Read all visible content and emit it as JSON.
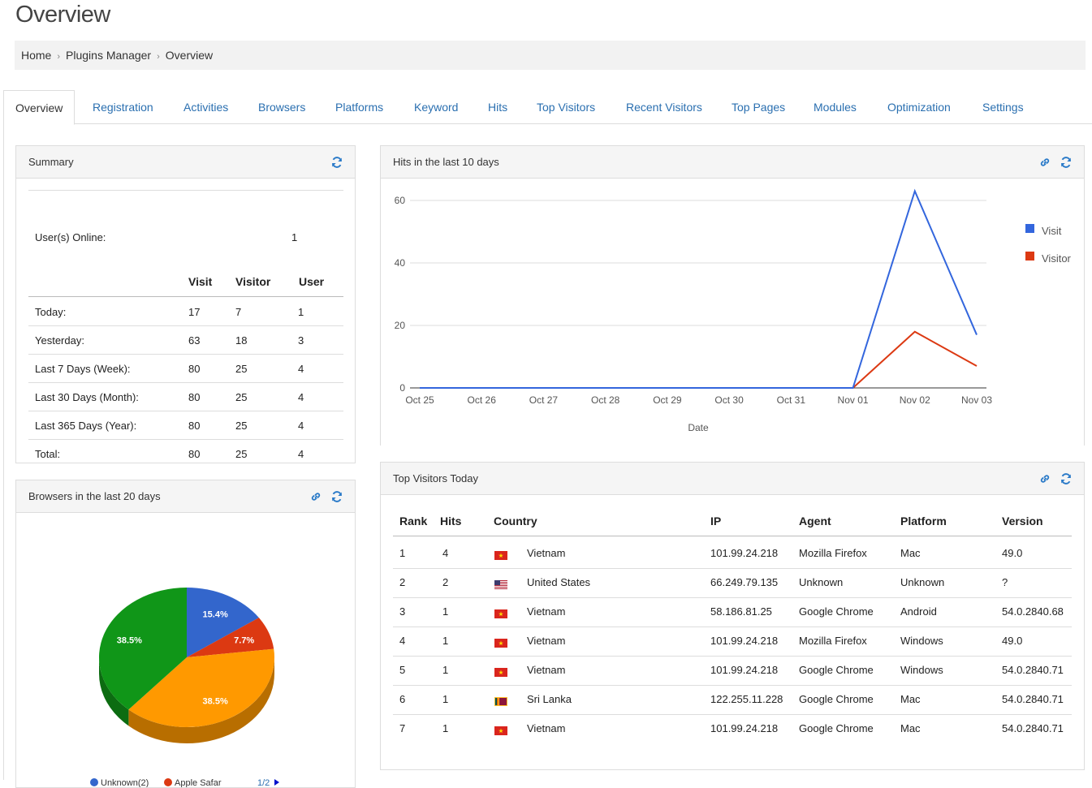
{
  "page": {
    "title": "Overview"
  },
  "breadcrumb": [
    "Home",
    "Plugins Manager",
    "Overview"
  ],
  "tabs": [
    "Overview",
    "Registration",
    "Activities",
    "Browsers",
    "Platforms",
    "Keyword",
    "Hits",
    "Top Visitors",
    "Recent Visitors",
    "Top Pages",
    "Modules",
    "Optimization",
    "Settings"
  ],
  "summary": {
    "title": "Summary",
    "online_label": "User(s) Online:",
    "online_value": "1",
    "columns": [
      "Visit",
      "Visitor",
      "User"
    ],
    "rows": [
      {
        "label": "Today:",
        "visit": "17",
        "visitor": "7",
        "user": "1"
      },
      {
        "label": "Yesterday:",
        "visit": "63",
        "visitor": "18",
        "user": "3"
      },
      {
        "label": "Last 7 Days (Week):",
        "visit": "80",
        "visitor": "25",
        "user": "4"
      },
      {
        "label": "Last 30 Days (Month):",
        "visit": "80",
        "visitor": "25",
        "user": "4"
      },
      {
        "label": "Last 365 Days (Year):",
        "visit": "80",
        "visitor": "25",
        "user": "4"
      },
      {
        "label": "Total:",
        "visit": "80",
        "visitor": "25",
        "user": "4"
      }
    ]
  },
  "hits_panel": {
    "title": "Hits in the last 10 days"
  },
  "browsers_panel": {
    "title": "Browsers in the last 20 days"
  },
  "visitors_panel": {
    "title": "Top Visitors Today",
    "columns": [
      "Rank",
      "Hits",
      "Country",
      "IP",
      "Agent",
      "Platform",
      "Version"
    ],
    "rows": [
      {
        "rank": "1",
        "hits": "4",
        "flag": "vn",
        "country": "Vietnam",
        "ip": "101.99.24.218",
        "agent": "Mozilla Firefox",
        "platform": "Mac",
        "version": "49.0"
      },
      {
        "rank": "2",
        "hits": "2",
        "flag": "us",
        "country": "United States",
        "ip": "66.249.79.135",
        "agent": "Unknown",
        "platform": "Unknown",
        "version": "?"
      },
      {
        "rank": "3",
        "hits": "1",
        "flag": "vn",
        "country": "Vietnam",
        "ip": "58.186.81.25",
        "agent": "Google Chrome",
        "platform": "Android",
        "version": "54.0.2840.68"
      },
      {
        "rank": "4",
        "hits": "1",
        "flag": "vn",
        "country": "Vietnam",
        "ip": "101.99.24.218",
        "agent": "Mozilla Firefox",
        "platform": "Windows",
        "version": "49.0"
      },
      {
        "rank": "5",
        "hits": "1",
        "flag": "vn",
        "country": "Vietnam",
        "ip": "101.99.24.218",
        "agent": "Google Chrome",
        "platform": "Windows",
        "version": "54.0.2840.71"
      },
      {
        "rank": "6",
        "hits": "1",
        "flag": "lk",
        "country": "Sri Lanka",
        "ip": "122.255.11.228",
        "agent": "Google Chrome",
        "platform": "Mac",
        "version": "54.0.2840.71"
      },
      {
        "rank": "7",
        "hits": "1",
        "flag": "vn",
        "country": "Vietnam",
        "ip": "101.99.24.218",
        "agent": "Google Chrome",
        "platform": "Mac",
        "version": "54.0.2840.71"
      }
    ]
  },
  "chart_data": [
    {
      "type": "line",
      "title": "",
      "xlabel": "Date",
      "ylabel": "",
      "x": [
        "Oct 25",
        "Oct 26",
        "Oct 27",
        "Oct 28",
        "Oct 29",
        "Oct 30",
        "Oct 31",
        "Nov 01",
        "Nov 02",
        "Nov 03"
      ],
      "ylim": [
        0,
        60
      ],
      "yticks": [
        0,
        20,
        40,
        60
      ],
      "grid": true,
      "legend_position": "right",
      "series": [
        {
          "name": "Visit",
          "color": "#3366dd",
          "values": [
            0,
            0,
            0,
            0,
            0,
            0,
            0,
            0,
            63,
            17
          ]
        },
        {
          "name": "Visitor",
          "color": "#dc3912",
          "values": [
            0,
            0,
            0,
            0,
            0,
            0,
            0,
            0,
            18,
            7
          ]
        }
      ]
    },
    {
      "type": "pie",
      "title": "",
      "slices": [
        {
          "label": "15.4%",
          "value": 15.4,
          "color": "#3366cc"
        },
        {
          "label": "7.7%",
          "value": 7.7,
          "color": "#dc3912"
        },
        {
          "label": "38.5%",
          "value": 38.5,
          "color": "#ff9900"
        },
        {
          "label": "38.5%",
          "value": 38.5,
          "color": "#109618"
        }
      ],
      "legend_position": "bottom",
      "legend_visible": [
        "Unknown(2)",
        "Apple Safar",
        "1/2"
      ]
    }
  ],
  "colors": {
    "link": "#2a6fb0",
    "panel_header_bg": "#f5f5f5",
    "border": "#dddddd"
  }
}
